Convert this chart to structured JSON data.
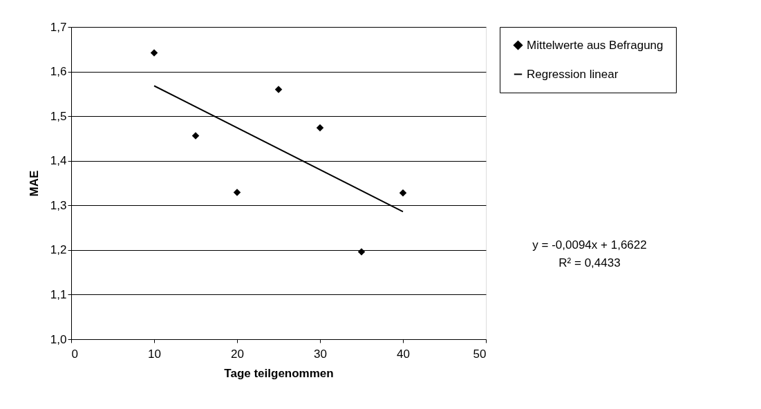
{
  "chart_data": {
    "type": "scatter",
    "xlabel": "Tage teilgenommen",
    "ylabel": "MAE",
    "series": [
      {
        "name": "Mittelwerte aus Befragung",
        "marker": "diamond",
        "color": "#000000",
        "x": [
          10,
          15,
          20,
          25,
          30,
          35,
          40
        ],
        "values": [
          1.642,
          1.456,
          1.329,
          1.56,
          1.474,
          1.196,
          1.328
        ]
      },
      {
        "name": "Regression linear",
        "type": "line",
        "color": "#000000",
        "x": [
          10,
          40
        ],
        "values": [
          1.568,
          1.286
        ]
      }
    ],
    "xlim": [
      0,
      50
    ],
    "xticks": [
      0,
      10,
      20,
      30,
      40,
      50
    ],
    "ylim": [
      1.0,
      1.7
    ],
    "yticks": [
      {
        "value": 1.0,
        "label": "1,0"
      },
      {
        "value": 1.1,
        "label": "1,1"
      },
      {
        "value": 1.2,
        "label": "1,2"
      },
      {
        "value": 1.3,
        "label": "1,3"
      },
      {
        "value": 1.4,
        "label": "1,4"
      },
      {
        "value": 1.5,
        "label": "1,5"
      },
      {
        "value": 1.6,
        "label": "1,6"
      },
      {
        "value": 1.7,
        "label": "1,7"
      }
    ],
    "grid": "y",
    "legend": "right",
    "line_style": "solid",
    "annotations": [
      "y = -0,0094x + 1,6622",
      "R² = 0,4433"
    ]
  }
}
